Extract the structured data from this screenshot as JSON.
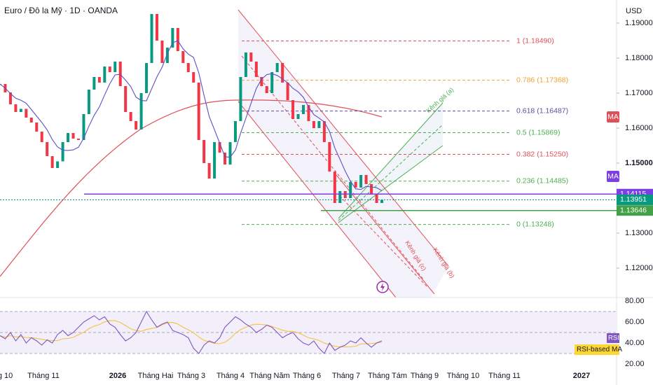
{
  "header": {
    "title": "Euro / Đô la Mỹ · 1D · OANDA",
    "currency": "USD"
  },
  "price_axis": {
    "ylim": [
      1.1116,
      1.1966
    ],
    "ticks": [
      {
        "value": 1.19,
        "label": "1.19000"
      },
      {
        "value": 1.18,
        "label": "1.18000"
      },
      {
        "value": 1.17,
        "label": "1.17000"
      },
      {
        "value": 1.16,
        "label": "1.16000"
      },
      {
        "value": 1.15,
        "label": "1.15000"
      },
      {
        "value": 1.13,
        "label": "1.13000"
      },
      {
        "value": 1.12,
        "label": "1.12000"
      }
    ]
  },
  "time_axis": {
    "labels": [
      "Tháng 10",
      "Tháng 11",
      "2026",
      "Tháng Hai",
      "Tháng 3",
      "Tháng 4",
      "Tháng Năm",
      "Tháng 6",
      "Tháng 7",
      "Tháng Tám",
      "Tháng 9",
      "Tháng 10",
      "Tháng 11",
      "2027"
    ]
  },
  "closes": [
    1.1726,
    1.1702,
    1.1668,
    1.1646,
    1.1655,
    1.163,
    1.1616,
    1.159,
    1.156,
    1.152,
    1.1486,
    1.1505,
    1.156,
    1.1586,
    1.157,
    1.1566,
    1.164,
    1.171,
    1.1746,
    1.173,
    1.1776,
    1.176,
    1.179,
    1.172,
    1.1646,
    1.162,
    1.1596,
    1.17,
    1.1786,
    1.1926,
    1.185,
    1.1786,
    1.183,
    1.1886,
    1.182,
    1.1786,
    1.176,
    1.173,
    1.1566,
    1.15,
    1.1456,
    1.156,
    1.153,
    1.1496,
    1.156,
    1.162,
    1.1746,
    1.1816,
    1.179,
    1.1746,
    1.172,
    1.17,
    1.176,
    1.1786,
    1.173,
    1.168,
    1.1626,
    1.164,
    1.1666,
    1.162,
    1.16,
    1.162,
    1.156,
    1.1476,
    1.1386,
    1.142,
    1.14,
    1.1446,
    1.143,
    1.1466,
    1.144,
    1.141,
    1.1386,
    1.1395
  ],
  "fib_levels": [
    {
      "label": "1 (1.18490)",
      "price": 1.1849,
      "color": "#e0505a"
    },
    {
      "label": "0.786 (1.17368)",
      "price": 1.17368,
      "color": "#f0a030"
    },
    {
      "label": "0.618 (1.16487)",
      "price": 1.16487,
      "color": "#5c4f9e"
    },
    {
      "label": "0.5 (1.15869)",
      "price": 1.15869,
      "color": "#4caf50"
    },
    {
      "label": "0.382 (1.15250)",
      "price": 1.1525,
      "color": "#e0505a"
    },
    {
      "label": "0.236 (1.14485)",
      "price": 1.14485,
      "color": "#4caf50"
    },
    {
      "label": "0 (1.13248)",
      "price": 1.13248,
      "color": "#4caf50"
    }
  ],
  "price_tags": [
    {
      "label": "1.14115",
      "price": 1.14115,
      "color": "#7b3fe4"
    },
    {
      "label": "1.13951",
      "price": 1.13951,
      "color": "#089981"
    },
    {
      "label": "1.13646",
      "price": 1.13646,
      "color": "#43a047"
    }
  ],
  "ma_tags": [
    "MA",
    "MA"
  ],
  "channels": [
    "Kênh giá (a)",
    "Kênh giá (b)",
    "Kênh giá (c)"
  ],
  "rsi": {
    "ylim": [
      16.7,
      83.3
    ],
    "ticks": [
      {
        "value": 80,
        "label": "80.00"
      },
      {
        "value": 60,
        "label": "60.00"
      },
      {
        "value": 40,
        "label": "40.00"
      },
      {
        "value": 20,
        "label": "20.00"
      }
    ],
    "tag": "RSI",
    "ma_tag": "RSI-based MA",
    "values": [
      47,
      44,
      50,
      42,
      48,
      40,
      45,
      42,
      38,
      43,
      40,
      48,
      52,
      47,
      50,
      55,
      60,
      63,
      66,
      62,
      65,
      58,
      55,
      48,
      42,
      45,
      50,
      60,
      70,
      62,
      55,
      58,
      60,
      52,
      50,
      48,
      45,
      35,
      30,
      38,
      42,
      40,
      45,
      55,
      60,
      65,
      62,
      58,
      55,
      50,
      53,
      57,
      55,
      50,
      45,
      48,
      50,
      44,
      40,
      38,
      42,
      35,
      30,
      40,
      33,
      36,
      38,
      42,
      40,
      45,
      40,
      36,
      40,
      42
    ]
  }
}
